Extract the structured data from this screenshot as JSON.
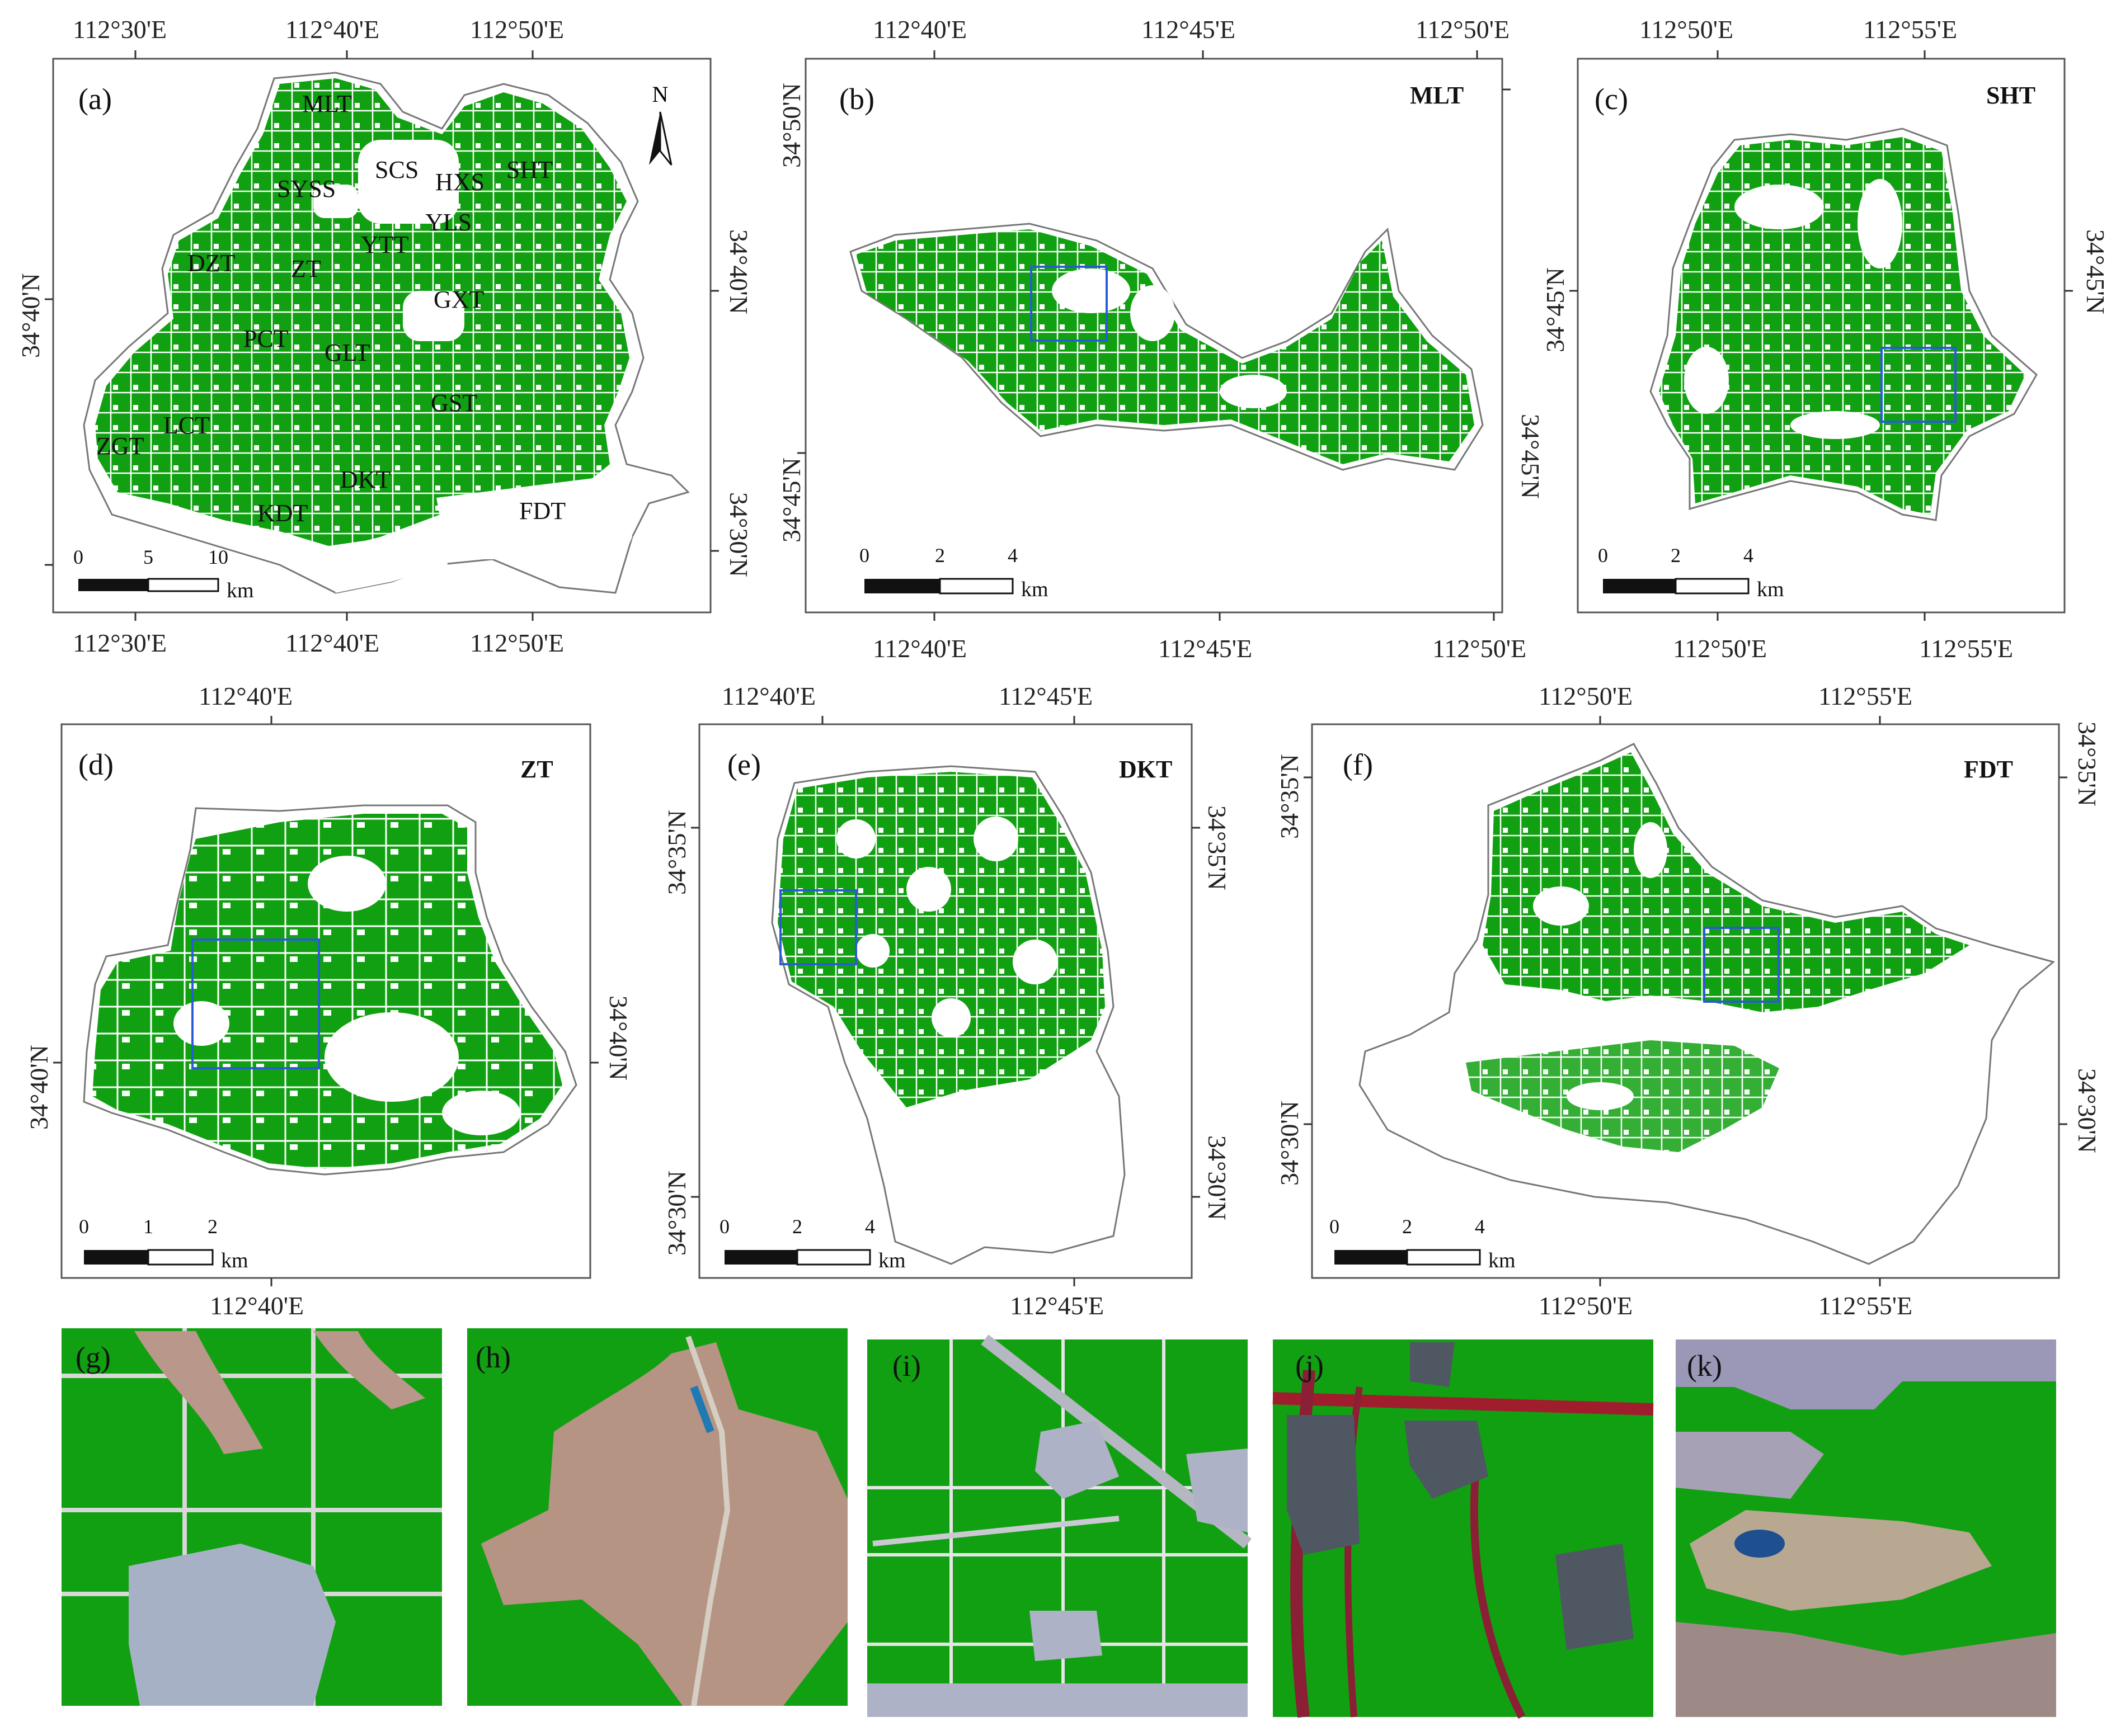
{
  "colors": {
    "cropland": "#11a011",
    "roi": "#2a5bd7",
    "boundary": "#777777"
  },
  "panel_a": {
    "label": "(a)",
    "top_lon": [
      "112°30'E",
      "112°40'E",
      "112°50'E"
    ],
    "bottom_lon": [
      "112°30'E",
      "112°40'E",
      "112°50'E"
    ],
    "left_lat": [
      "34°40'N"
    ],
    "right_lat": [
      "34°40'N",
      "34°30'N"
    ],
    "north": "N",
    "regions": [
      "MLT",
      "SCS",
      "HXS",
      "SHT",
      "SYSS",
      "YLS",
      "YTT",
      "DZT",
      "ZT",
      "GXT",
      "PCT",
      "GLT",
      "GST",
      "LCT",
      "ZGT",
      "DKT",
      "KDT",
      "FDT"
    ],
    "scale": [
      "0",
      "5",
      "10"
    ],
    "unit": "km"
  },
  "panel_b": {
    "label": "(b)",
    "name": "MLT",
    "top_lon": [
      "112°40'E",
      "112°45'E",
      "112°50'E"
    ],
    "bottom_lon": [
      "112°40'E",
      "112°45'E",
      "112°50'E"
    ],
    "left_lat": [
      "34°50'N",
      "34°45'N"
    ],
    "right_lat": [
      "34°45'N"
    ],
    "scale": [
      "0",
      "2",
      "4"
    ],
    "unit": "km"
  },
  "panel_c": {
    "label": "(c)",
    "name": "SHT",
    "top_lon": [
      "112°50'E",
      "112°55'E"
    ],
    "bottom_lon": [
      "112°50'E",
      "112°55'E"
    ],
    "left_lat": [
      "34°45'N"
    ],
    "right_lat": [
      "34°45'N"
    ],
    "scale": [
      "0",
      "2",
      "4"
    ],
    "unit": "km"
  },
  "panel_d": {
    "label": "(d)",
    "name": "ZT",
    "top_lon": [
      "112°40'E"
    ],
    "bottom_lon": [
      "112°40'E"
    ],
    "left_lat": [
      "34°40'N"
    ],
    "right_lat": [
      "34°40'N"
    ],
    "scale": [
      "0",
      "1",
      "2"
    ],
    "unit": "km"
  },
  "panel_e": {
    "label": "(e)",
    "name": "DKT",
    "top_lon": [
      "112°40'E",
      "112°45'E"
    ],
    "bottom_lon": [
      "112°45'E"
    ],
    "left_lat": [
      "34°35'N",
      "34°30'N"
    ],
    "right_lat": [
      "34°35'N",
      "34°30'N"
    ],
    "scale": [
      "0",
      "2",
      "4"
    ],
    "unit": "km"
  },
  "panel_f": {
    "label": "(f)",
    "name": "FDT",
    "top_lon": [
      "112°50'E",
      "112°55'E"
    ],
    "bottom_lon": [
      "112°50'E",
      "112°55'E"
    ],
    "left_lat": [
      "34°35'N",
      "34°30'N"
    ],
    "right_lat": [
      "34°35'N",
      "34°30'N"
    ],
    "scale": [
      "0",
      "2",
      "4"
    ],
    "unit": "km"
  },
  "insets": [
    "(g)",
    "(h)",
    "(i)",
    "(j)",
    "(k)"
  ]
}
